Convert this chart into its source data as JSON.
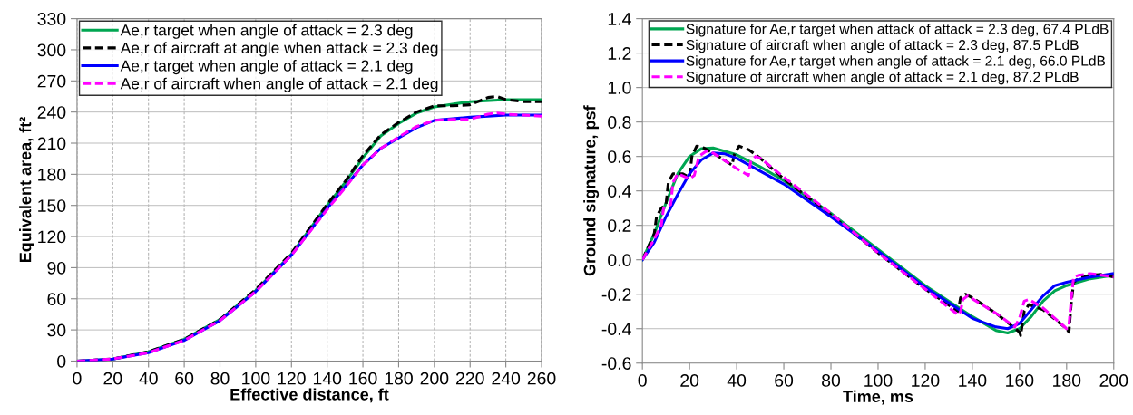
{
  "chart_data": [
    {
      "type": "line",
      "xlabel": "Effective distance, ft",
      "ylabel": "Equivalent area, ft²",
      "xlim": [
        0,
        260
      ],
      "ylim": [
        0,
        330
      ],
      "xticks": [
        0,
        20,
        40,
        60,
        80,
        100,
        120,
        140,
        160,
        180,
        200,
        220,
        240,
        260
      ],
      "yticks": [
        0,
        30,
        60,
        90,
        120,
        150,
        180,
        210,
        240,
        270,
        300,
        330
      ],
      "grid": true,
      "legend": "top left",
      "series": [
        {
          "name": "Ae,r target when angle of attack = 2.3 deg",
          "color": "#00a651",
          "line_style": "solid",
          "x": [
            0,
            20,
            40,
            60,
            80,
            100,
            120,
            140,
            150,
            160,
            170,
            180,
            190,
            200,
            220,
            240,
            260
          ],
          "values": [
            0,
            2,
            9,
            21,
            40,
            68,
            103,
            150,
            172,
            196,
            217,
            229,
            239,
            245,
            250,
            252,
            252
          ]
        },
        {
          "name": "Ae,r of aircraft at angle when attack = 2.3 deg",
          "color": "#000000",
          "line_style": "dashed",
          "x": [
            0,
            20,
            40,
            60,
            80,
            100,
            120,
            140,
            150,
            160,
            170,
            180,
            190,
            200,
            210,
            220,
            230,
            235,
            240,
            250,
            260
          ],
          "values": [
            0,
            2,
            9,
            21,
            40,
            69,
            104,
            151,
            173,
            198,
            218,
            230,
            240,
            246,
            246,
            247,
            254,
            255,
            252,
            250,
            250
          ]
        },
        {
          "name": "Ae,r target when angle of attack = 2.1 deg",
          "color": "#0000ff",
          "line_style": "solid",
          "x": [
            0,
            20,
            40,
            60,
            80,
            100,
            120,
            140,
            150,
            160,
            170,
            180,
            190,
            200,
            220,
            240,
            260
          ],
          "values": [
            0,
            2,
            8,
            20,
            39,
            67,
            102,
            147,
            168,
            189,
            205,
            215,
            225,
            232,
            235,
            237,
            237
          ]
        },
        {
          "name": "Ae,r of aircraft when angle of attack = 2.1 deg",
          "color": "#ff00ff",
          "line_style": "dashed",
          "x": [
            0,
            20,
            40,
            60,
            80,
            100,
            120,
            140,
            150,
            160,
            170,
            180,
            190,
            200,
            210,
            220,
            230,
            235,
            240,
            250,
            260
          ],
          "values": [
            0,
            2,
            8,
            20,
            39,
            67,
            102,
            146,
            167,
            189,
            205,
            216,
            226,
            232,
            233,
            233,
            238,
            239,
            238,
            237,
            236
          ]
        }
      ]
    },
    {
      "type": "line",
      "xlabel": "Time, ms",
      "ylabel": "Ground signature, psf",
      "xlim": [
        0,
        200
      ],
      "ylim": [
        -0.6,
        1.4
      ],
      "xticks": [
        0,
        20,
        40,
        60,
        80,
        100,
        120,
        140,
        160,
        180,
        200
      ],
      "yticks": [
        {
          "value": -0.6,
          "label": "-0.6"
        },
        {
          "value": -0.4,
          "label": "-0.4"
        },
        {
          "value": -0.2,
          "label": "-0.2"
        },
        {
          "value": 0,
          "label": "0.0"
        },
        {
          "value": 0.2,
          "label": "0.2"
        },
        {
          "value": 0.4,
          "label": "0.4"
        },
        {
          "value": 0.6,
          "label": "0.6"
        },
        {
          "value": 0.8,
          "label": "0.8"
        },
        {
          "value": 1.0,
          "label": "1.0"
        },
        {
          "value": 1.2,
          "label": "1.2"
        },
        {
          "value": 1.4,
          "label": "1.4"
        }
      ],
      "grid": "y",
      "legend": "top right",
      "series": [
        {
          "name": "Signature for Ae,r target when attack of attack = 2.3 deg, 67.4 PLdB",
          "color": "#00a651",
          "line_style": "solid",
          "x": [
            0,
            5,
            10,
            15,
            20,
            25,
            30,
            40,
            50,
            60,
            80,
            100,
            120,
            140,
            150,
            155,
            160,
            165,
            170,
            175,
            180,
            190,
            200
          ],
          "values": [
            0,
            0.15,
            0.33,
            0.5,
            0.6,
            0.645,
            0.65,
            0.61,
            0.54,
            0.46,
            0.27,
            0.06,
            -0.15,
            -0.33,
            -0.41,
            -0.425,
            -0.4,
            -0.33,
            -0.24,
            -0.18,
            -0.15,
            -0.11,
            -0.09
          ]
        },
        {
          "name": "Signature of aircraft when angle of attack = 2.3 deg, 87.5 PLdB",
          "color": "#000000",
          "line_style": "dashed",
          "x": [
            0,
            5,
            6,
            8,
            10,
            11,
            13,
            17,
            20,
            21,
            23,
            26,
            30,
            38,
            39,
            41,
            45,
            50,
            60,
            80,
            100,
            120,
            134,
            135,
            137,
            140,
            150,
            160,
            160.5,
            162,
            164,
            170,
            180,
            181,
            182,
            183,
            186,
            190,
            195,
            200
          ],
          "values": [
            0,
            0.15,
            0.25,
            0.3,
            0.32,
            0.45,
            0.5,
            0.5,
            0.48,
            0.6,
            0.66,
            0.65,
            0.62,
            0.55,
            0.61,
            0.66,
            0.64,
            0.59,
            0.47,
            0.26,
            0.04,
            -0.17,
            -0.3,
            -0.22,
            -0.2,
            -0.22,
            -0.31,
            -0.42,
            -0.44,
            -0.3,
            -0.26,
            -0.29,
            -0.4,
            -0.42,
            -0.25,
            -0.13,
            -0.1,
            -0.09,
            -0.085,
            -0.1
          ]
        },
        {
          "name": "Signature for Ae,r target when angle of attack = 2.1 deg, 66.0 PLdB",
          "color": "#0000ff",
          "line_style": "solid",
          "x": [
            0,
            5,
            10,
            15,
            20,
            25,
            30,
            35,
            40,
            60,
            80,
            100,
            120,
            140,
            150,
            155,
            160,
            165,
            170,
            175,
            180,
            190,
            200
          ],
          "values": [
            0,
            0.1,
            0.25,
            0.38,
            0.5,
            0.58,
            0.62,
            0.615,
            0.59,
            0.44,
            0.25,
            0.05,
            -0.16,
            -0.34,
            -0.39,
            -0.4,
            -0.37,
            -0.29,
            -0.21,
            -0.15,
            -0.13,
            -0.1,
            -0.08
          ]
        },
        {
          "name": "Signature of aircraft when angle of attack = 2.1 deg, 87.2 PLdB",
          "color": "#ff00ff",
          "line_style": "dashed",
          "x": [
            0,
            5,
            8,
            9,
            12,
            13,
            15,
            20,
            22,
            24,
            27,
            30,
            40,
            45,
            46,
            48,
            50,
            60,
            80,
            100,
            120,
            134,
            135,
            136,
            138,
            150,
            158,
            160,
            162,
            164,
            170,
            180,
            181,
            182,
            183,
            185,
            190,
            200
          ],
          "values": [
            0,
            0.12,
            0.2,
            0.3,
            0.32,
            0.45,
            0.5,
            0.47,
            0.49,
            0.6,
            0.63,
            0.62,
            0.53,
            0.49,
            0.57,
            0.6,
            0.59,
            0.48,
            0.27,
            0.04,
            -0.17,
            -0.32,
            -0.3,
            -0.23,
            -0.21,
            -0.31,
            -0.39,
            -0.34,
            -0.24,
            -0.23,
            -0.28,
            -0.4,
            -0.38,
            -0.22,
            -0.1,
            -0.09,
            -0.08,
            -0.1
          ]
        }
      ]
    }
  ]
}
